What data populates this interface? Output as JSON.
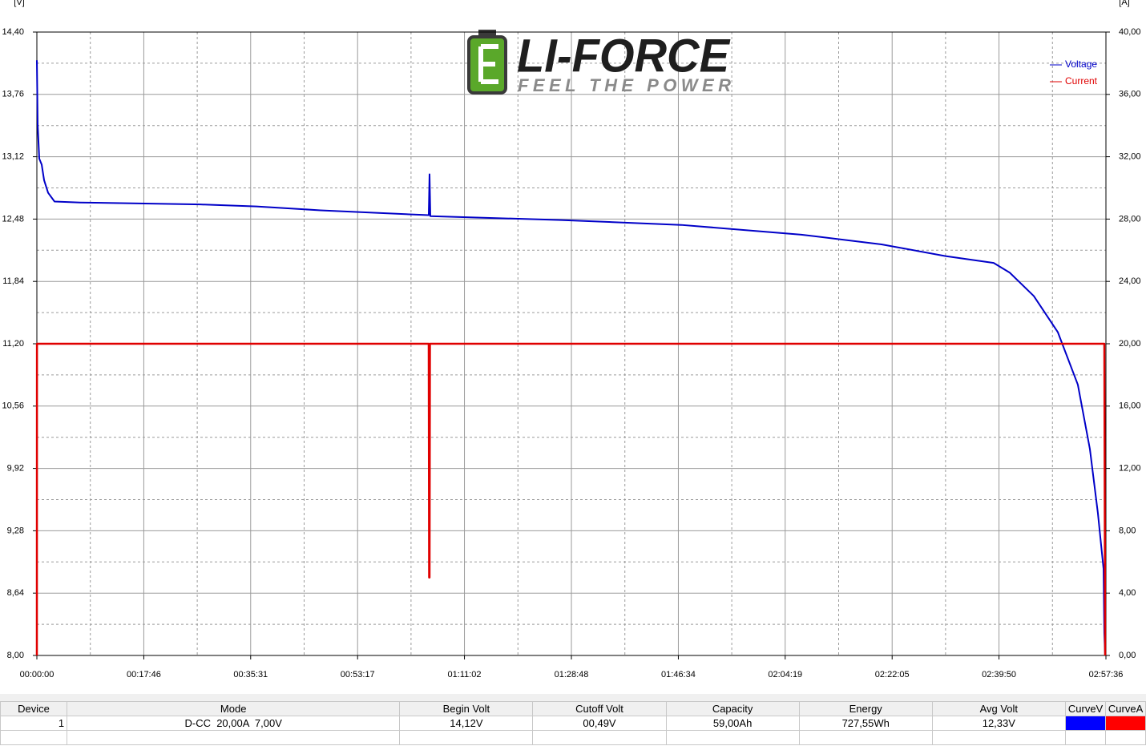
{
  "chart_data": {
    "type": "line",
    "y_label": "[V]",
    "y2_label": "[A]",
    "logo": {
      "title": "LI-FORCE",
      "tagline": "FEEL THE POWER"
    },
    "xlim": [
      0,
      10656
    ],
    "xticks": [
      {
        "value": 0,
        "label": "00:00:00"
      },
      {
        "value": 1066,
        "label": "00:17:46"
      },
      {
        "value": 2131,
        "label": "00:35:31"
      },
      {
        "value": 3197,
        "label": "00:53:17"
      },
      {
        "value": 4262,
        "label": "01:11:02"
      },
      {
        "value": 5328,
        "label": "01:28:48"
      },
      {
        "value": 6394,
        "label": "01:46:34"
      },
      {
        "value": 7459,
        "label": "02:04:19"
      },
      {
        "value": 8525,
        "label": "02:22:05"
      },
      {
        "value": 9590,
        "label": "02:39:50"
      },
      {
        "value": 10656,
        "label": "02:57:36"
      }
    ],
    "ylim": [
      8.0,
      14.4
    ],
    "yticks": [
      {
        "value": 8.0,
        "label": "8,00"
      },
      {
        "value": 8.64,
        "label": "8,64"
      },
      {
        "value": 9.28,
        "label": "9,28"
      },
      {
        "value": 9.92,
        "label": "9,92"
      },
      {
        "value": 10.56,
        "label": "10,56"
      },
      {
        "value": 11.2,
        "label": "11,20"
      },
      {
        "value": 11.84,
        "label": "11,84"
      },
      {
        "value": 12.48,
        "label": "12,48"
      },
      {
        "value": 13.12,
        "label": "13,12"
      },
      {
        "value": 13.76,
        "label": "13,76"
      },
      {
        "value": 14.4,
        "label": "14,40"
      }
    ],
    "y2lim": [
      0,
      40
    ],
    "y2ticks": [
      {
        "value": 0,
        "label": "0,00"
      },
      {
        "value": 4,
        "label": "4,00"
      },
      {
        "value": 8,
        "label": "8,00"
      },
      {
        "value": 12,
        "label": "12,00"
      },
      {
        "value": 16,
        "label": "16,00"
      },
      {
        "value": 20,
        "label": "20,00"
      },
      {
        "value": 24,
        "label": "24,00"
      },
      {
        "value": 28,
        "label": "28,00"
      },
      {
        "value": 32,
        "label": "32,00"
      },
      {
        "value": 36,
        "label": "36,00"
      },
      {
        "value": 40,
        "label": "40,00"
      }
    ],
    "grid": true,
    "minor_grid": true,
    "legend": "top-right",
    "series": [
      {
        "name": "Voltage",
        "color": "#0000c8",
        "x": [
          0,
          8,
          24,
          48,
          72,
          112,
          176,
          431,
          1629,
          2188,
          2827,
          3906,
          3914,
          3922,
          5224,
          6422,
          7620,
          8419,
          9058,
          9537,
          9697,
          9937,
          10176,
          10376,
          10496,
          10576,
          10632,
          10640,
          10648
        ],
        "values": [
          14.11,
          13.45,
          13.1,
          13.04,
          12.88,
          12.75,
          12.66,
          12.65,
          12.63,
          12.61,
          12.57,
          12.52,
          12.94,
          12.51,
          12.47,
          12.42,
          12.32,
          12.22,
          12.1,
          12.03,
          11.93,
          11.69,
          11.32,
          10.78,
          10.12,
          9.46,
          8.89,
          8.23,
          8.0
        ]
      },
      {
        "name": "Current",
        "color": "#e00000",
        "axis": "y2",
        "x": [
          0,
          1,
          3906,
          3910,
          3914,
          3918,
          10640,
          10648
        ],
        "values": [
          0,
          20,
          20,
          5,
          5,
          20,
          20,
          0
        ]
      }
    ]
  },
  "table": {
    "columns": [
      "Device",
      "Mode",
      "Begin Volt",
      "Cutoff Volt",
      "Capacity",
      "Energy",
      "Avg Volt",
      "CurveV",
      "CurveA"
    ],
    "rows": [
      [
        "1",
        "D-CC  20,00A  7,00V",
        "14,12V",
        "00,49V",
        "59,00Ah",
        "727,55Wh",
        "12,33V"
      ]
    ],
    "curve_colors": [
      "#0000ff",
      "#ff0000"
    ]
  }
}
